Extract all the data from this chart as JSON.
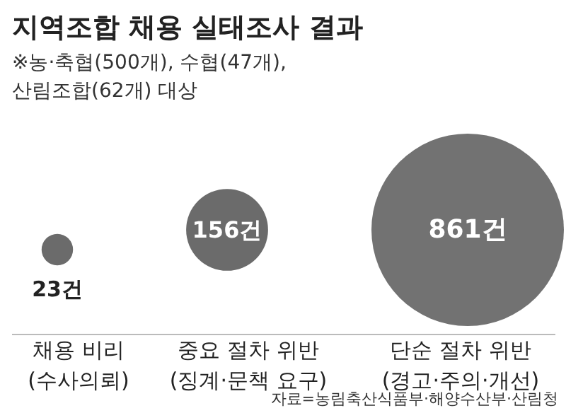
{
  "chart_data": {
    "type": "other",
    "title": "지역조합 채용 실태조사 결과",
    "subtitle": "※농·축협(500개), 수협(47개),\n산림조합(62개) 대상",
    "categories": [
      "채용 비리\n(수사의뢰)",
      "중요 절차 위반\n(징계·문책 요구)",
      "단순 절차 위반\n(경고·주의·개선)"
    ],
    "values": [
      23,
      156,
      861
    ],
    "value_labels": [
      "23건",
      "156건",
      "861건"
    ],
    "colors": [
      "#6b6b6b",
      "#6b6b6b",
      "#727272"
    ],
    "annotations": [
      "자료=농림축산식품부·해양수산부·산림청"
    ]
  }
}
